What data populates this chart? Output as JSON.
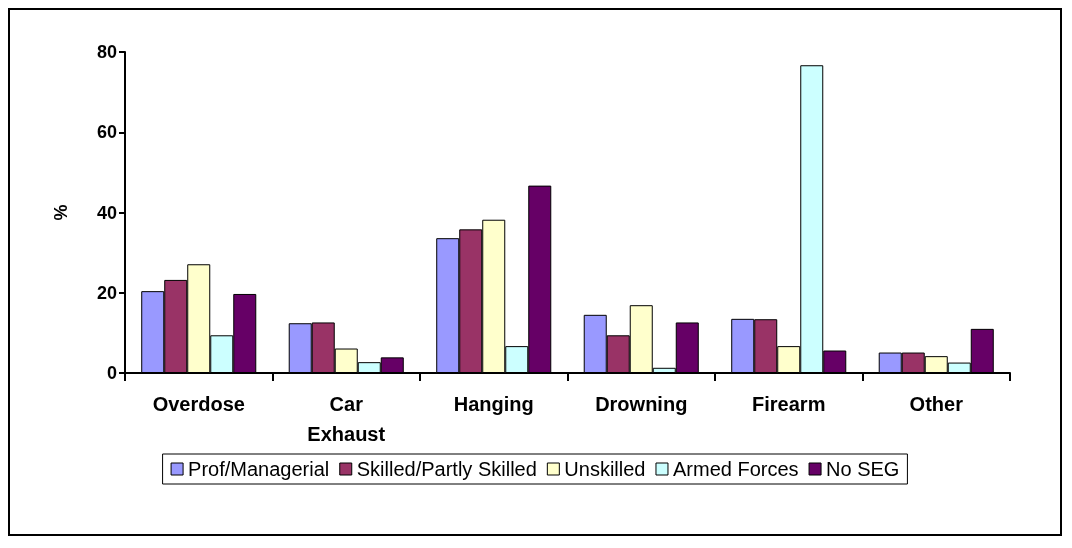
{
  "chart_data": {
    "type": "bar",
    "ylabel": "%",
    "categories": [
      "Overdose",
      "Car\nExhaust",
      "Hanging",
      "Drowning",
      "Firearm",
      "Other"
    ],
    "series": [
      {
        "name": "Prof/Managerial",
        "color": "#9999ff",
        "values": [
          20.4,
          12.4,
          33.6,
          14.5,
          13.5,
          5.1
        ]
      },
      {
        "name": "Skilled/Partly Skilled",
        "color": "#993366",
        "values": [
          23.2,
          12.6,
          35.8,
          9.4,
          13.4,
          5.1
        ]
      },
      {
        "name": "Unskilled",
        "color": "#ffffcc",
        "values": [
          27.1,
          6.1,
          38.2,
          16.9,
          6.7,
          4.2
        ]
      },
      {
        "name": "Armed Forces",
        "color": "#ccffff",
        "values": [
          9.4,
          2.7,
          6.7,
          1.3,
          76.7,
          2.6
        ]
      },
      {
        "name": "No SEG",
        "color": "#660066",
        "values": [
          19.7,
          3.9,
          46.7,
          12.6,
          5.6,
          11.0
        ]
      }
    ],
    "ylim": [
      0,
      80
    ],
    "yticks": [
      0,
      20,
      40,
      60,
      80
    ],
    "grid": false,
    "legend": "bottom"
  }
}
